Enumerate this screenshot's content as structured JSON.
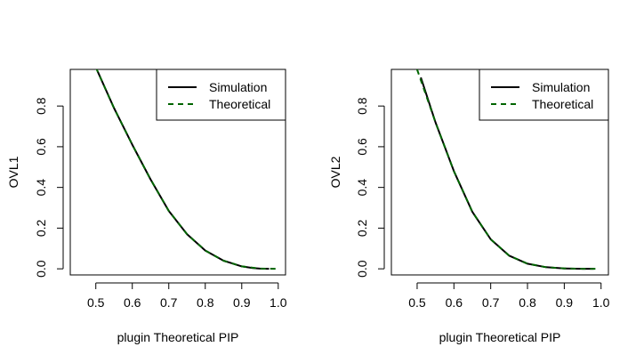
{
  "chart_data": [
    {
      "type": "line",
      "title": "",
      "xlabel": "plugin Theoretical PIP",
      "ylabel": "OVL1",
      "xlim": [
        0.43,
        1.02
      ],
      "ylim": [
        -0.03,
        0.98
      ],
      "xticks": [
        "0.5",
        "0.6",
        "0.7",
        "0.8",
        "0.9",
        "1.0"
      ],
      "yticks": [
        "0.0",
        "0.2",
        "0.4",
        "0.6",
        "0.8"
      ],
      "grid": false,
      "legend": "top-right",
      "series": [
        {
          "name": "Simulation",
          "style": "solid",
          "color": "#000000",
          "x": [
            0.505,
            0.55,
            0.6,
            0.65,
            0.7,
            0.75,
            0.8,
            0.85,
            0.9,
            0.93,
            0.95,
            0.975
          ],
          "y": [
            0.97,
            0.79,
            0.61,
            0.44,
            0.285,
            0.17,
            0.09,
            0.04,
            0.012,
            0.004,
            0.001,
            0.0
          ]
        },
        {
          "name": "Theoretical",
          "style": "dashed",
          "color": "#006400",
          "x": [
            0.5,
            0.55,
            0.6,
            0.65,
            0.7,
            0.75,
            0.8,
            0.85,
            0.9,
            0.95,
            1.0
          ],
          "y": [
            0.99,
            0.79,
            0.61,
            0.44,
            0.285,
            0.17,
            0.09,
            0.04,
            0.012,
            0.001,
            0.0
          ]
        }
      ]
    },
    {
      "type": "line",
      "title": "",
      "xlabel": "plugin Theoretical PIP",
      "ylabel": "OVL2",
      "xlim": [
        0.43,
        1.02
      ],
      "ylim": [
        -0.03,
        0.98
      ],
      "xticks": [
        "0.5",
        "0.6",
        "0.7",
        "0.8",
        "0.9",
        "1.0"
      ],
      "yticks": [
        "0.0",
        "0.2",
        "0.4",
        "0.6",
        "0.8"
      ],
      "grid": false,
      "legend": "top-right",
      "series": [
        {
          "name": "Simulation",
          "style": "solid",
          "color": "#000000",
          "x": [
            0.51,
            0.55,
            0.6,
            0.65,
            0.7,
            0.75,
            0.8,
            0.85,
            0.9,
            0.95,
            0.98
          ],
          "y": [
            0.94,
            0.72,
            0.48,
            0.28,
            0.145,
            0.065,
            0.025,
            0.008,
            0.002,
            0.0,
            0.0
          ]
        },
        {
          "name": "Theoretical",
          "style": "dashed",
          "color": "#006400",
          "x": [
            0.5,
            0.55,
            0.6,
            0.65,
            0.7,
            0.75,
            0.8,
            0.85,
            0.9,
            0.95,
            0.99
          ],
          "y": [
            0.98,
            0.72,
            0.48,
            0.28,
            0.145,
            0.065,
            0.025,
            0.008,
            0.002,
            0.0,
            0.0
          ]
        }
      ]
    }
  ]
}
